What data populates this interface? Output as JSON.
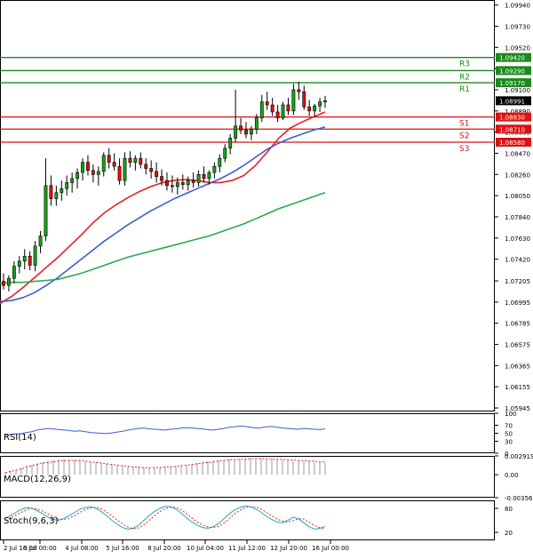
{
  "chart_data": {
    "type": "candlestick",
    "title": "",
    "price_axis": {
      "ticks": [
        "1.09940",
        "1.09730",
        "1.09520",
        "1.09310",
        "1.09100",
        "1.08890",
        "1.08680",
        "1.08470",
        "1.08260",
        "1.08050",
        "1.07840",
        "1.07630",
        "1.07420",
        "1.07205",
        "1.06995",
        "1.06785",
        "1.06575",
        "1.06365",
        "1.06155",
        "1.05945"
      ],
      "range": [
        1.0591,
        1.0999
      ],
      "current_price": "1.08991"
    },
    "levels": [
      {
        "name": "R3",
        "value": "1.09420",
        "color": "#1a8a1a"
      },
      {
        "name": "R2",
        "value": "1.09290",
        "color": "#1a8a1a"
      },
      {
        "name": "R1",
        "value": "1.09170",
        "color": "#1a8a1a"
      },
      {
        "name": "S1",
        "value": "1.08830",
        "color": "#dd1111"
      },
      {
        "name": "S2",
        "value": "1.08710",
        "color": "#dd1111"
      },
      {
        "name": "S3",
        "value": "1.08580",
        "color": "#dd1111"
      }
    ],
    "time_axis": [
      "2 Jul 16:00",
      "3 Jul 00:00",
      "4 Jul 08:00",
      "5 Jul 16:00",
      "8 Jul 20:00",
      "10 Jul 04:00",
      "11 Jul 12:00",
      "12 Jul 20:00",
      "16 Jul 00:00"
    ],
    "candles": [
      [
        1.072,
        1.0728,
        1.0712,
        1.0716
      ],
      [
        1.0716,
        1.0726,
        1.071,
        1.0723
      ],
      [
        1.0723,
        1.074,
        1.0718,
        1.0735
      ],
      [
        1.0735,
        1.0745,
        1.0728,
        1.074
      ],
      [
        1.074,
        1.0752,
        1.0732,
        1.0745
      ],
      [
        1.0745,
        1.075,
        1.0731,
        1.0736
      ],
      [
        1.0736,
        1.076,
        1.073,
        1.0755
      ],
      [
        1.0755,
        1.077,
        1.0748,
        1.0765
      ],
      [
        1.0765,
        1.0842,
        1.076,
        1.0815
      ],
      [
        1.0815,
        1.0825,
        1.0795,
        1.0802
      ],
      [
        1.0802,
        1.0815,
        1.0795,
        1.0808
      ],
      [
        1.0808,
        1.082,
        1.08,
        1.0812
      ],
      [
        1.0812,
        1.0825,
        1.0805,
        1.0818
      ],
      [
        1.0818,
        1.0828,
        1.0808,
        1.0822
      ],
      [
        1.0822,
        1.0832,
        1.0812,
        1.0828
      ],
      [
        1.0828,
        1.0842,
        1.082,
        1.0838
      ],
      [
        1.0838,
        1.0845,
        1.0825,
        1.083
      ],
      [
        1.083,
        1.0836,
        1.0818,
        1.0826
      ],
      [
        1.0826,
        1.0834,
        1.0815,
        1.0829
      ],
      [
        1.0829,
        1.0848,
        1.0824,
        1.0845
      ],
      [
        1.0845,
        1.0852,
        1.0832,
        1.0838
      ],
      [
        1.0838,
        1.0847,
        1.083,
        1.0834
      ],
      [
        1.0834,
        1.0842,
        1.0816,
        1.082
      ],
      [
        1.082,
        1.0848,
        1.0815,
        1.0842
      ],
      [
        1.0842,
        1.0849,
        1.0833,
        1.0838
      ],
      [
        1.0838,
        1.0845,
        1.083,
        1.0842
      ],
      [
        1.0842,
        1.0848,
        1.0832,
        1.0836
      ],
      [
        1.0836,
        1.0842,
        1.0826,
        1.0832
      ],
      [
        1.0832,
        1.084,
        1.0822,
        1.0829
      ],
      [
        1.0829,
        1.0838,
        1.0818,
        1.0824
      ],
      [
        1.0824,
        1.0831,
        1.0815,
        1.082
      ],
      [
        1.082,
        1.0828,
        1.081,
        1.0815
      ],
      [
        1.0815,
        1.0825,
        1.0808,
        1.0814
      ],
      [
        1.0814,
        1.0823,
        1.0806,
        1.0818
      ],
      [
        1.0818,
        1.0826,
        1.0811,
        1.0816
      ],
      [
        1.0816,
        1.0824,
        1.081,
        1.082
      ],
      [
        1.082,
        1.0828,
        1.0813,
        1.0818
      ],
      [
        1.0818,
        1.083,
        1.0814,
        1.0826
      ],
      [
        1.0826,
        1.0834,
        1.0818,
        1.0822
      ],
      [
        1.0822,
        1.083,
        1.0816,
        1.0828
      ],
      [
        1.0828,
        1.0838,
        1.0822,
        1.0834
      ],
      [
        1.0834,
        1.0846,
        1.0828,
        1.0842
      ],
      [
        1.0842,
        1.0856,
        1.0838,
        1.0852
      ],
      [
        1.0852,
        1.0866,
        1.0846,
        1.0862
      ],
      [
        1.0862,
        1.091,
        1.0858,
        1.0874
      ],
      [
        1.0874,
        1.0882,
        1.0866,
        1.087
      ],
      [
        1.087,
        1.0878,
        1.0862,
        1.0866
      ],
      [
        1.0866,
        1.0874,
        1.086,
        1.0871
      ],
      [
        1.0871,
        1.0886,
        1.0866,
        1.0882
      ],
      [
        1.0882,
        1.0905,
        1.0878,
        1.0898
      ],
      [
        1.0898,
        1.0908,
        1.089,
        1.0895
      ],
      [
        1.0895,
        1.0902,
        1.0884,
        1.0888
      ],
      [
        1.0888,
        1.0895,
        1.0878,
        1.0882
      ],
      [
        1.0882,
        1.0898,
        1.088,
        1.0895
      ],
      [
        1.0895,
        1.0902,
        1.0885,
        1.0889
      ],
      [
        1.0889,
        1.0916,
        1.0885,
        1.091
      ],
      [
        1.091,
        1.0918,
        1.09,
        1.0908
      ],
      [
        1.0908,
        1.0914,
        1.089,
        1.0893
      ],
      [
        1.0893,
        1.09,
        1.0884,
        1.0889
      ],
      [
        1.0889,
        1.0896,
        1.0883,
        1.0894
      ],
      [
        1.0894,
        1.0902,
        1.0888,
        1.0898
      ],
      [
        1.0898,
        1.0904,
        1.0892,
        1.0899
      ]
    ],
    "moving_averages": [
      {
        "color": "#e82020",
        "values": [
          1.0698,
          1.0705,
          1.0714,
          1.0724,
          1.0734,
          1.0744,
          1.0755,
          1.0766,
          1.0778,
          1.0788,
          1.0796,
          1.0803,
          1.0809,
          1.0814,
          1.0818,
          1.082,
          1.0821,
          1.082,
          1.0818,
          1.0818,
          1.082,
          1.0825,
          1.0835,
          1.0848,
          1.0862,
          1.0872,
          1.0878,
          1.0883,
          1.0888
        ]
      },
      {
        "color": "#3a5fcd",
        "values": [
          1.07,
          1.0701,
          1.0704,
          1.0709,
          1.0716,
          1.0724,
          1.0733,
          1.0742,
          1.0751,
          1.076,
          1.0768,
          1.0776,
          1.0783,
          1.079,
          1.0796,
          1.0802,
          1.0807,
          1.0812,
          1.0817,
          1.0822,
          1.0828,
          1.0835,
          1.0843,
          1.0851,
          1.0857,
          1.0862,
          1.0866,
          1.087,
          1.0873
        ]
      },
      {
        "color": "#2ea84a",
        "values": [
          1.0718,
          1.0719,
          1.0719,
          1.072,
          1.0721,
          1.0722,
          1.0725,
          1.0728,
          1.0732,
          1.0736,
          1.074,
          1.0744,
          1.0747,
          1.075,
          1.0753,
          1.0756,
          1.0759,
          1.0762,
          1.0765,
          1.0769,
          1.0773,
          1.0777,
          1.0782,
          1.0787,
          1.0792,
          1.0796,
          1.08,
          1.0804,
          1.0808
        ]
      }
    ],
    "indicators": [
      {
        "label": "RSI(14)",
        "ticks": [
          "100",
          "70",
          "50",
          "30",
          "0"
        ],
        "values": [
          45,
          47,
          48,
          49,
          52,
          54,
          58,
          60,
          62,
          61,
          59,
          58,
          57,
          55,
          56,
          54,
          52,
          51,
          50,
          49,
          51,
          53,
          55,
          58,
          60,
          62,
          63,
          61,
          60,
          59,
          58,
          60,
          61,
          63,
          64,
          63,
          62,
          61,
          59,
          58,
          60,
          62,
          65,
          66,
          68,
          67,
          65,
          63,
          64,
          66,
          67,
          65,
          63,
          62,
          61,
          60,
          62,
          61,
          60,
          59,
          61
        ]
      },
      {
        "label": "MACD(12,26,9)",
        "ticks": [
          "0.002919",
          "0.00",
          "-0.00356"
        ],
        "histogram": [
          0.0004,
          0.0006,
          0.0008,
          0.0011,
          0.0014,
          0.0016,
          0.0018,
          0.002,
          0.0022,
          0.0023,
          0.0024,
          0.0024,
          0.0024,
          0.0023,
          0.0022,
          0.0021,
          0.002,
          0.0019,
          0.0018,
          0.0017,
          0.0016,
          0.0015,
          0.0014,
          0.0013,
          0.0012,
          0.0012,
          0.0011,
          0.0011,
          0.0011,
          0.0011,
          0.0012,
          0.0012,
          0.0013,
          0.0014,
          0.0015,
          0.0016,
          0.0018,
          0.002,
          0.0021,
          0.0022,
          0.0023,
          0.0023,
          0.0024,
          0.0024,
          0.0024,
          0.0025,
          0.0025,
          0.0025,
          0.0025,
          0.0024,
          0.0024,
          0.0024,
          0.0023,
          0.0023,
          0.0022,
          0.0022,
          0.0021,
          0.0021,
          0.002,
          0.002,
          0.0019
        ],
        "signal": [
          0.0003,
          0.0005,
          0.0007,
          0.0009,
          0.0012,
          0.0014,
          0.0016,
          0.0018,
          0.0019,
          0.002,
          0.0021,
          0.0022,
          0.0022,
          0.0022,
          0.0022,
          0.0021,
          0.002,
          0.0019,
          0.0018,
          0.0017,
          0.0016,
          0.0015,
          0.0014,
          0.0013,
          0.0012,
          0.0012,
          0.0011,
          0.0011,
          0.0011,
          0.0011,
          0.0012,
          0.0012,
          0.0013,
          0.0014,
          0.0015,
          0.0016,
          0.0017,
          0.0018,
          0.0019,
          0.002,
          0.0021,
          0.0022,
          0.0023,
          0.0023,
          0.0024,
          0.0024,
          0.0025,
          0.0025,
          0.0025,
          0.0025,
          0.0024,
          0.0024,
          0.0024,
          0.0023,
          0.0023,
          0.0022,
          0.0022,
          0.0021,
          0.0021,
          0.002,
          0.002
        ]
      },
      {
        "label": "Stoch(9,6,3)",
        "ticks": [
          "80",
          "20"
        ],
        "k": [
          55,
          62,
          70,
          78,
          82,
          80,
          74,
          66,
          58,
          52,
          50,
          55,
          62,
          70,
          78,
          82,
          84,
          80,
          72,
          62,
          50,
          40,
          32,
          28,
          30,
          38,
          50,
          62,
          72,
          80,
          85,
          84,
          78,
          68,
          56,
          46,
          38,
          32,
          30,
          34,
          42,
          54,
          66,
          76,
          82,
          86,
          84,
          78,
          70,
          60,
          52,
          46,
          44,
          50,
          58,
          54,
          44,
          34,
          28,
          30,
          35
        ],
        "d": [
          50,
          56,
          63,
          70,
          77,
          80,
          78,
          73,
          66,
          59,
          53,
          52,
          56,
          62,
          70,
          77,
          81,
          82,
          79,
          71,
          61,
          50,
          41,
          33,
          29,
          31,
          39,
          50,
          62,
          72,
          79,
          83,
          82,
          76,
          67,
          56,
          46,
          38,
          33,
          32,
          35,
          43,
          54,
          66,
          75,
          82,
          84,
          83,
          78,
          70,
          61,
          53,
          48,
          46,
          49,
          54,
          53,
          46,
          37,
          31,
          30
        ]
      }
    ]
  }
}
